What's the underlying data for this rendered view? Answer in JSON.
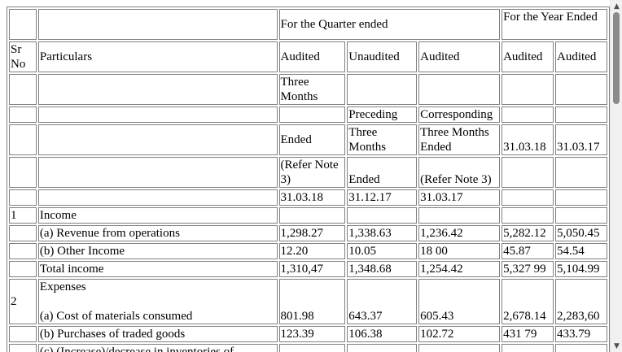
{
  "header": {
    "quarter_group": "For the Quarter ended",
    "year_group": "For the Year Ended",
    "sr_no": "Sr No",
    "particulars": "Particulars",
    "audit_status": [
      "Audited",
      "Unaudited",
      "Audited",
      "Audited",
      "Audited"
    ],
    "row_a": [
      "Three Months",
      "",
      "",
      "",
      ""
    ],
    "row_b": [
      "",
      "Preceding",
      "Corresponding",
      "",
      ""
    ],
    "row_c": [
      "Ended",
      "Three Months",
      "Three Months Ended",
      "31.03.18",
      "31.03.17"
    ],
    "row_d": [
      "(Refer Note 3)",
      "Ended",
      "(Refer Note 3)",
      "",
      ""
    ],
    "row_e": [
      "31.03.18",
      "31.12.17",
      "31.03.17",
      "",
      ""
    ]
  },
  "rows": [
    {
      "sr": "1",
      "label": "Income",
      "values": [
        "",
        "",
        "",
        "",
        ""
      ]
    },
    {
      "sr": "",
      "label": "(a) Revenue from operations",
      "values": [
        "1,298.27",
        "1,338.63",
        "1,236.42",
        "5,282.12",
        "5,050.45"
      ]
    },
    {
      "sr": "",
      "label": "(b) Other Income",
      "values": [
        "12.20",
        "10.05",
        "18 00",
        "45.87",
        "54.54"
      ]
    },
    {
      "sr": "",
      "label": "Total income",
      "values": [
        "1,310,47",
        "1,348.68",
        "1,254.42",
        "5,327 99",
        "5,104.99"
      ]
    },
    {
      "sr": "2",
      "label_top": "Expenses",
      "label": "(a) Cost of materials consumed",
      "values": [
        "801.98",
        "643.37",
        "605.43",
        "2,678.14",
        "2,283,60"
      ]
    },
    {
      "sr": "",
      "label": "(b) Purchases of traded goods",
      "values": [
        "123.39",
        "106.38",
        "102.72",
        "431 79",
        "433.79"
      ]
    },
    {
      "sr": "",
      "label": "(c) (Increase)/decrease in inventories of",
      "values": [
        "",
        "",
        "",
        "",
        ""
      ]
    }
  ],
  "scrollbar": {
    "up_icon": "▲",
    "down_icon": "▼"
  }
}
